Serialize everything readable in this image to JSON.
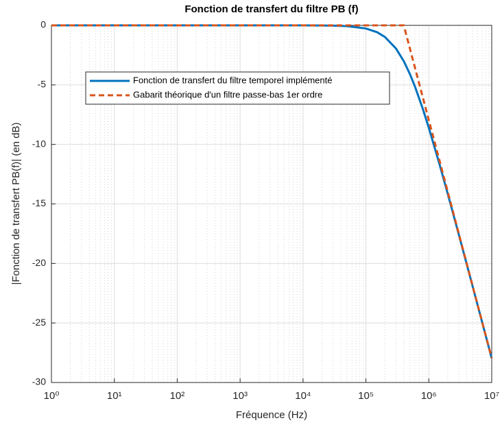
{
  "chart_data": {
    "type": "line",
    "title": "Fonction de transfert du filtre PB (f)",
    "xlabel": "Fréquence (Hz)",
    "ylabel": "|Fonction de transfert PB(f)| (en dB)",
    "xscale": "log",
    "xlim": [
      1,
      10000000
    ],
    "xticks": [
      {
        "value": 1,
        "label": "10⁰"
      },
      {
        "value": 10,
        "label": "10¹"
      },
      {
        "value": 100,
        "label": "10²"
      },
      {
        "value": 1000,
        "label": "10³"
      },
      {
        "value": 10000,
        "label": "10⁴"
      },
      {
        "value": 100000,
        "label": "10⁵"
      },
      {
        "value": 1000000,
        "label": "10⁶"
      },
      {
        "value": 10000000,
        "label": "10⁷"
      }
    ],
    "ylim": [
      -30,
      0
    ],
    "yticks": [
      0,
      -5,
      -10,
      -15,
      -20,
      -25,
      -30
    ],
    "grid": true,
    "minor_grid": true,
    "legend": "upper-left",
    "series": [
      {
        "name": "Fonction de transfert du filtre temporel implémenté",
        "color": "#0072bd",
        "dash": false,
        "x": [
          1,
          10000,
          30000,
          50000,
          100000,
          150000,
          200000,
          300000,
          400000,
          500000,
          600000,
          800000,
          1000000,
          1500000,
          2000000,
          3000000,
          5000000,
          10000000
        ],
        "values": [
          0,
          0,
          -0.024,
          -0.067,
          -0.263,
          -0.572,
          -0.969,
          -1.938,
          -3.01,
          -4.087,
          -5.119,
          -6.99,
          -8.603,
          -11.778,
          -14.15,
          -17.578,
          -21.966,
          -27.966
        ]
      },
      {
        "name": "Gabarit théorique d'un filtre passe-bas 1er ordre",
        "color": "#d95319",
        "dash": true,
        "x": [
          1,
          400000,
          10000000
        ],
        "values": [
          0,
          0,
          -27.959
        ]
      }
    ]
  }
}
